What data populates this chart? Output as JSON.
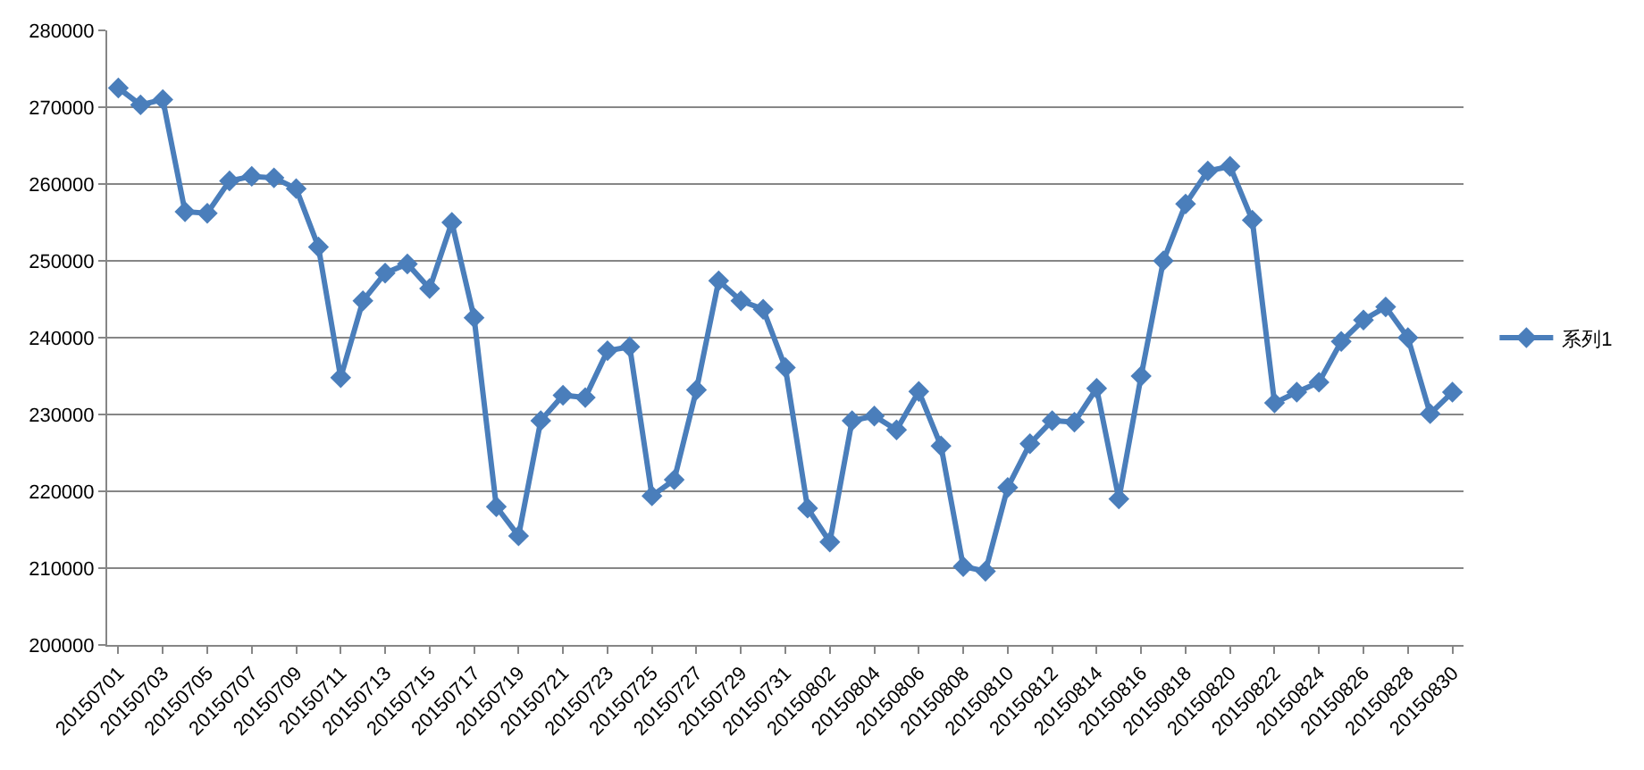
{
  "chart_data": {
    "type": "line",
    "categories": [
      "20150701",
      null,
      "20150703",
      null,
      "20150705",
      null,
      "20150707",
      null,
      "20150709",
      null,
      "20150711",
      null,
      "20150713",
      null,
      "20150715",
      null,
      "20150717",
      null,
      "20150719",
      null,
      "20150721",
      null,
      "20150723",
      null,
      "20150725",
      null,
      "20150727",
      null,
      "20150729",
      null,
      "20150731",
      null,
      "20150802",
      null,
      "20150804",
      null,
      "20150806",
      null,
      "20150808",
      null,
      "20150810",
      null,
      "20150812",
      null,
      "20150814",
      null,
      "20150816",
      null,
      "20150818",
      null,
      "20150820",
      null,
      "20150822",
      null,
      "20150824",
      null,
      "20150826",
      null,
      "20150828",
      null,
      "20150830"
    ],
    "series": [
      {
        "name": "系列1",
        "color": "#4a7ebb",
        "values": [
          272500,
          270300,
          271000,
          256400,
          256200,
          260400,
          261000,
          260800,
          259400,
          251800,
          234800,
          244800,
          248400,
          249600,
          246400,
          255000,
          242600,
          218000,
          214200,
          229200,
          232500,
          232200,
          238300,
          238800,
          219400,
          221500,
          233200,
          247400,
          244800,
          243700,
          236100,
          217800,
          213400,
          229200,
          229800,
          228000,
          233000,
          225900,
          210200,
          209600,
          220500,
          226200,
          229200,
          229000,
          233400,
          219000,
          235000,
          250000,
          257400,
          261700,
          262300,
          255300,
          231500,
          232900,
          234200,
          239500,
          242300,
          244000,
          240000,
          230100,
          232900
        ]
      }
    ],
    "ylim": [
      200000,
      280000
    ],
    "yticks": [
      200000,
      210000,
      220000,
      230000,
      240000,
      250000,
      260000,
      270000,
      280000
    ],
    "grid": "y",
    "legend": "right",
    "marker": "diamond",
    "line_style": "solid"
  }
}
